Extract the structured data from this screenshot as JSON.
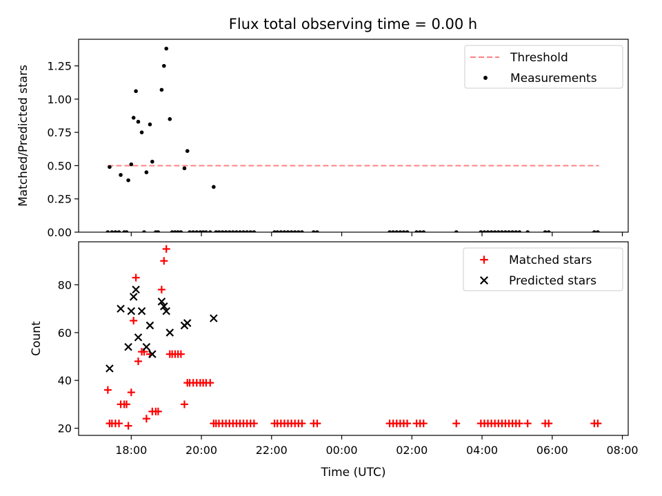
{
  "figure_title": "Flux total observing time = 0.00 h",
  "colors": {
    "threshold": "#ff8080",
    "measurement": "#000000",
    "matched": "#ff0000",
    "predicted": "#000000"
  },
  "chart_data": [
    {
      "type": "scatter",
      "ylabel": "Matched/Predicted stars",
      "xlabel": "",
      "xlim": [
        "16:30",
        "08:10"
      ],
      "ylim": [
        0,
        1.45
      ],
      "yticks": [
        "0.00",
        "0.25",
        "0.50",
        "0.75",
        "1.00",
        "1.25"
      ],
      "xticks": [
        "18:00",
        "20:00",
        "22:00",
        "00:00",
        "02:00",
        "04:00",
        "06:00",
        "08:00"
      ],
      "show_xticklabels": false,
      "legend": {
        "position": "top-right",
        "entries": [
          "Threshold",
          "Measurements"
        ]
      },
      "threshold": {
        "name": "Threshold",
        "y": 0.5,
        "x": [
          "17:20",
          "07:20"
        ]
      },
      "series": [
        {
          "name": "Measurements",
          "marker": "dot",
          "points": [
            [
              "17:20",
              0
            ],
            [
              "17:23",
              0.49
            ],
            [
              "17:27",
              0
            ],
            [
              "17:33",
              0
            ],
            [
              "17:39",
              0
            ],
            [
              "17:42",
              0.43
            ],
            [
              "17:48",
              0
            ],
            [
              "17:52",
              0
            ],
            [
              "17:55",
              0.39
            ],
            [
              "18:00",
              0.51
            ],
            [
              "18:04",
              0.86
            ],
            [
              "18:08",
              1.06
            ],
            [
              "18:12",
              0.83
            ],
            [
              "18:18",
              0.75
            ],
            [
              "18:22",
              0
            ],
            [
              "18:26",
              0.45
            ],
            [
              "18:32",
              0.81
            ],
            [
              "18:36",
              0.53
            ],
            [
              "18:42",
              0
            ],
            [
              "18:46",
              0
            ],
            [
              "18:52",
              1.07
            ],
            [
              "18:56",
              1.25
            ],
            [
              "19:00",
              1.38
            ],
            [
              "19:06",
              0.85
            ],
            [
              "19:10",
              0
            ],
            [
              "19:15",
              0
            ],
            [
              "19:20",
              0
            ],
            [
              "19:25",
              0
            ],
            [
              "19:31",
              0.48
            ],
            [
              "19:36",
              0.61
            ],
            [
              "19:40",
              0
            ],
            [
              "19:46",
              0
            ],
            [
              "19:52",
              0
            ],
            [
              "19:58",
              0
            ],
            [
              "20:03",
              0
            ],
            [
              "20:08",
              0
            ],
            [
              "20:15",
              0
            ],
            [
              "20:21",
              0.34
            ],
            [
              "20:25",
              0
            ],
            [
              "20:30",
              0
            ],
            [
              "20:36",
              0
            ],
            [
              "20:42",
              0
            ],
            [
              "20:48",
              0
            ],
            [
              "20:54",
              0
            ],
            [
              "21:00",
              0
            ],
            [
              "21:06",
              0
            ],
            [
              "21:12",
              0
            ],
            [
              "21:18",
              0
            ],
            [
              "21:24",
              0
            ],
            [
              "21:30",
              0
            ],
            [
              "22:05",
              0
            ],
            [
              "22:10",
              0
            ],
            [
              "22:16",
              0
            ],
            [
              "22:22",
              0
            ],
            [
              "22:28",
              0
            ],
            [
              "22:34",
              0
            ],
            [
              "22:40",
              0
            ],
            [
              "22:46",
              0
            ],
            [
              "22:52",
              0
            ],
            [
              "23:12",
              0
            ],
            [
              "23:18",
              0
            ],
            [
              "01:22",
              0
            ],
            [
              "01:28",
              0
            ],
            [
              "01:34",
              0
            ],
            [
              "01:40",
              0
            ],
            [
              "01:46",
              0
            ],
            [
              "01:52",
              0
            ],
            [
              "02:08",
              0
            ],
            [
              "02:14",
              0
            ],
            [
              "02:20",
              0
            ],
            [
              "03:16",
              0
            ],
            [
              "03:58",
              0
            ],
            [
              "04:04",
              0
            ],
            [
              "04:10",
              0
            ],
            [
              "04:16",
              0
            ],
            [
              "04:22",
              0
            ],
            [
              "04:28",
              0
            ],
            [
              "04:34",
              0
            ],
            [
              "04:40",
              0
            ],
            [
              "04:46",
              0
            ],
            [
              "04:52",
              0
            ],
            [
              "04:58",
              0
            ],
            [
              "05:04",
              0
            ],
            [
              "05:18",
              0
            ],
            [
              "05:48",
              0
            ],
            [
              "05:54",
              0
            ],
            [
              "07:12",
              0
            ],
            [
              "07:18",
              0
            ]
          ]
        }
      ]
    },
    {
      "type": "scatter",
      "ylabel": "Count",
      "xlabel": "Time (UTC)",
      "xlim": [
        "16:30",
        "08:10"
      ],
      "ylim": [
        17,
        98
      ],
      "yticks": [
        "20",
        "40",
        "60",
        "80"
      ],
      "xticks": [
        "18:00",
        "20:00",
        "22:00",
        "00:00",
        "02:00",
        "04:00",
        "06:00",
        "08:00"
      ],
      "show_xticklabels": true,
      "legend": {
        "position": "top-right",
        "entries": [
          "Matched stars",
          "Predicted stars"
        ]
      },
      "series": [
        {
          "name": "Matched stars",
          "marker": "plus",
          "points": [
            [
              "17:20",
              36
            ],
            [
              "17:23",
              22
            ],
            [
              "17:27",
              22
            ],
            [
              "17:33",
              22
            ],
            [
              "17:39",
              22
            ],
            [
              "17:42",
              30
            ],
            [
              "17:48",
              30
            ],
            [
              "17:52",
              30
            ],
            [
              "17:55",
              21
            ],
            [
              "18:00",
              35
            ],
            [
              "18:04",
              65
            ],
            [
              "18:08",
              83
            ],
            [
              "18:12",
              48
            ],
            [
              "18:18",
              52
            ],
            [
              "18:22",
              52
            ],
            [
              "18:26",
              24
            ],
            [
              "18:32",
              51
            ],
            [
              "18:36",
              27
            ],
            [
              "18:42",
              27
            ],
            [
              "18:46",
              27
            ],
            [
              "18:52",
              78
            ],
            [
              "18:56",
              90
            ],
            [
              "19:00",
              95
            ],
            [
              "19:06",
              51
            ],
            [
              "19:10",
              51
            ],
            [
              "19:15",
              51
            ],
            [
              "19:20",
              51
            ],
            [
              "19:25",
              51
            ],
            [
              "19:31",
              30
            ],
            [
              "19:36",
              39
            ],
            [
              "19:40",
              39
            ],
            [
              "19:46",
              39
            ],
            [
              "19:52",
              39
            ],
            [
              "19:58",
              39
            ],
            [
              "20:03",
              39
            ],
            [
              "20:08",
              39
            ],
            [
              "20:15",
              39
            ],
            [
              "20:21",
              22
            ],
            [
              "20:25",
              22
            ],
            [
              "20:30",
              22
            ],
            [
              "20:36",
              22
            ],
            [
              "20:42",
              22
            ],
            [
              "20:48",
              22
            ],
            [
              "20:54",
              22
            ],
            [
              "21:00",
              22
            ],
            [
              "21:06",
              22
            ],
            [
              "21:12",
              22
            ],
            [
              "21:18",
              22
            ],
            [
              "21:24",
              22
            ],
            [
              "21:30",
              22
            ],
            [
              "22:05",
              22
            ],
            [
              "22:10",
              22
            ],
            [
              "22:16",
              22
            ],
            [
              "22:22",
              22
            ],
            [
              "22:28",
              22
            ],
            [
              "22:34",
              22
            ],
            [
              "22:40",
              22
            ],
            [
              "22:46",
              22
            ],
            [
              "22:52",
              22
            ],
            [
              "23:12",
              22
            ],
            [
              "23:18",
              22
            ],
            [
              "01:22",
              22
            ],
            [
              "01:28",
              22
            ],
            [
              "01:34",
              22
            ],
            [
              "01:40",
              22
            ],
            [
              "01:46",
              22
            ],
            [
              "01:52",
              22
            ],
            [
              "02:08",
              22
            ],
            [
              "02:14",
              22
            ],
            [
              "02:20",
              22
            ],
            [
              "03:16",
              22
            ],
            [
              "03:58",
              22
            ],
            [
              "04:04",
              22
            ],
            [
              "04:10",
              22
            ],
            [
              "04:16",
              22
            ],
            [
              "04:22",
              22
            ],
            [
              "04:28",
              22
            ],
            [
              "04:34",
              22
            ],
            [
              "04:40",
              22
            ],
            [
              "04:46",
              22
            ],
            [
              "04:52",
              22
            ],
            [
              "04:58",
              22
            ],
            [
              "05:04",
              22
            ],
            [
              "05:18",
              22
            ],
            [
              "05:48",
              22
            ],
            [
              "05:54",
              22
            ],
            [
              "07:12",
              22
            ],
            [
              "07:18",
              22
            ]
          ]
        },
        {
          "name": "Predicted stars",
          "marker": "x",
          "points": [
            [
              "17:23",
              45
            ],
            [
              "17:42",
              70
            ],
            [
              "17:55",
              54
            ],
            [
              "18:00",
              69
            ],
            [
              "18:04",
              75
            ],
            [
              "18:08",
              78
            ],
            [
              "18:12",
              58
            ],
            [
              "18:18",
              69
            ],
            [
              "18:26",
              54
            ],
            [
              "18:32",
              63
            ],
            [
              "18:36",
              51
            ],
            [
              "18:52",
              73
            ],
            [
              "18:56",
              71
            ],
            [
              "19:00",
              69
            ],
            [
              "19:06",
              60
            ],
            [
              "19:31",
              63
            ],
            [
              "19:36",
              64
            ],
            [
              "20:21",
              66
            ]
          ]
        }
      ]
    }
  ]
}
